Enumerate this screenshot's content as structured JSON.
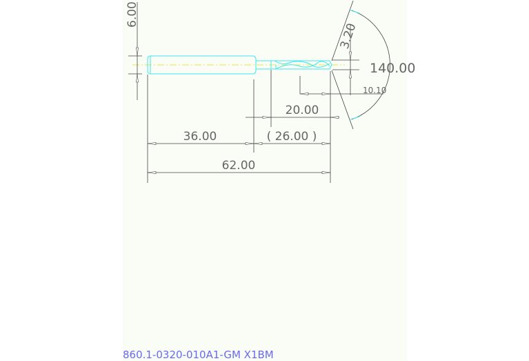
{
  "drawing": {
    "dimensions": {
      "shank_diameter": "6.00",
      "drill_diameter": "3.20",
      "point_angle": "140.00",
      "tip_length": "10.10",
      "flute_length": "20.00",
      "neck_length": "( 26.00 )",
      "shank_length": "36.00",
      "overall_length": "62.00"
    },
    "colors": {
      "tool_outline": "#3fe6f0",
      "centerline": "#e8e84a",
      "dimension": "#444444",
      "part_number": "#6a6af0"
    }
  },
  "part_number": "860.1-0320-010A1-GM X1BM"
}
